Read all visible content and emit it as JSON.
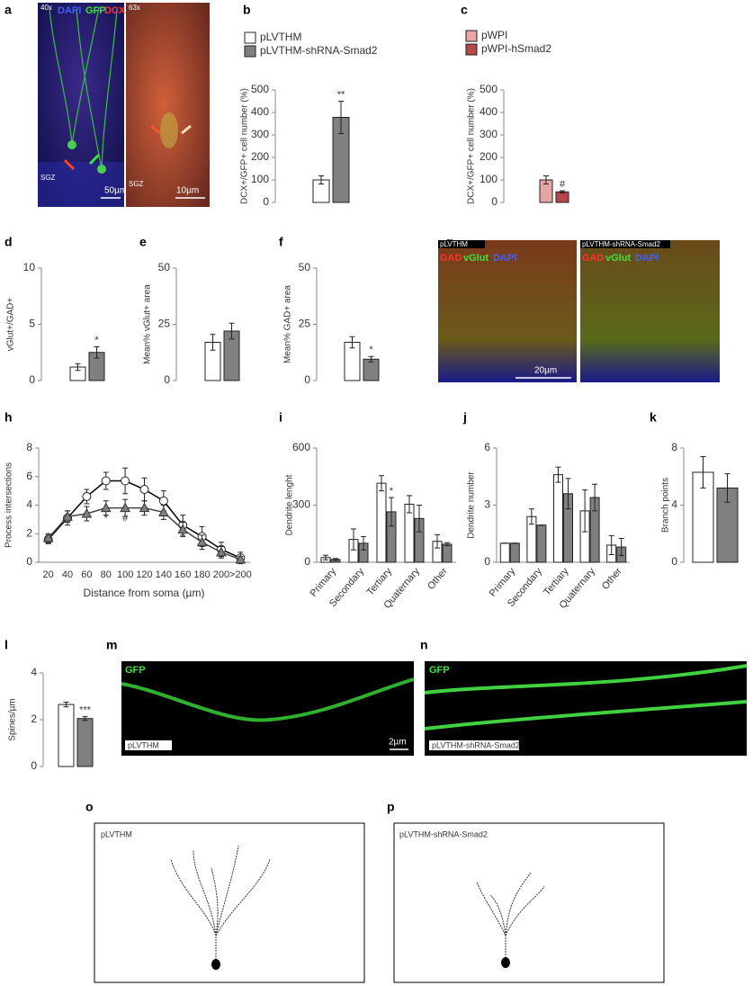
{
  "chart_data": [
    {
      "panel": "b",
      "type": "bar",
      "ylabel": "DCX+/GFP+ cell number (%)",
      "ylim": [
        0,
        500
      ],
      "yticks": [
        0,
        100,
        200,
        300,
        400,
        500
      ],
      "series": [
        {
          "name": "pLVTHM",
          "color": "#ffffff",
          "values": [
            100
          ],
          "errors": [
            18
          ],
          "significance": [
            null
          ]
        },
        {
          "name": "pLVTHM-shRNA-Smad2",
          "color": "#808080",
          "values": [
            378
          ],
          "errors": [
            72
          ],
          "significance": [
            "**"
          ]
        }
      ]
    },
    {
      "panel": "c",
      "type": "bar",
      "ylabel": "DCX+/GFP+ cell number (%)",
      "ylim": [
        0,
        500
      ],
      "yticks": [
        0,
        100,
        200,
        300,
        400,
        500
      ],
      "series": [
        {
          "name": "pWPI",
          "color": "#e6a5a5",
          "values": [
            100
          ],
          "errors": [
            18
          ],
          "significance": [
            null
          ]
        },
        {
          "name": "pWPI-hSmad2",
          "color": "#b5464a",
          "values": [
            47
          ],
          "errors": [
            5
          ],
          "significance": [
            "#"
          ]
        }
      ]
    },
    {
      "panel": "d",
      "type": "bar",
      "ylabel": "vGlut+/GAD+",
      "ylim": [
        0,
        10
      ],
      "yticks": [
        0,
        5,
        10
      ],
      "series": [
        {
          "color": "#ffffff",
          "values": [
            1.2
          ],
          "errors": [
            0.3
          ],
          "significance": [
            null
          ]
        },
        {
          "color": "#808080",
          "values": [
            2.5
          ],
          "errors": [
            0.5
          ],
          "significance": [
            "*"
          ]
        }
      ]
    },
    {
      "panel": "e",
      "type": "bar",
      "ylabel": "Mean% vGlut+ area",
      "ylim": [
        0,
        50
      ],
      "yticks": [
        0,
        25,
        50
      ],
      "series": [
        {
          "color": "#ffffff",
          "values": [
            17
          ],
          "errors": [
            3.5
          ],
          "significance": [
            null
          ]
        },
        {
          "color": "#808080",
          "values": [
            22
          ],
          "errors": [
            3.5
          ],
          "significance": [
            null
          ]
        }
      ]
    },
    {
      "panel": "f",
      "type": "bar",
      "ylabel": "Mean% GAD+ area",
      "ylim": [
        0,
        50
      ],
      "yticks": [
        0,
        25,
        50
      ],
      "series": [
        {
          "color": "#ffffff",
          "values": [
            17
          ],
          "errors": [
            2.5
          ],
          "significance": [
            null
          ]
        },
        {
          "color": "#808080",
          "values": [
            9.5
          ],
          "errors": [
            1.2
          ],
          "significance": [
            "*"
          ]
        }
      ]
    },
    {
      "panel": "h",
      "type": "line",
      "ylabel": "Process intersections",
      "xlabel": "Distance from soma (µm)",
      "ylim": [
        0,
        8
      ],
      "yticks": [
        0,
        2,
        4,
        6,
        8
      ],
      "categories": [
        "20",
        "40",
        "60",
        "80",
        "100",
        "120",
        "140",
        "160",
        "180",
        "200",
        ">200"
      ],
      "series": [
        {
          "color": "#ffffff",
          "marker": "circle",
          "values": [
            1.6,
            3.1,
            4.6,
            5.7,
            5.7,
            5.1,
            4.3,
            2.6,
            1.8,
            0.9,
            0.3
          ],
          "errors": [
            0.3,
            0.5,
            0.5,
            0.6,
            0.9,
            0.8,
            0.7,
            0.7,
            0.7,
            0.5,
            0.4
          ],
          "significance": [
            null,
            null,
            null,
            null,
            null,
            null,
            null,
            null,
            null,
            null,
            null
          ]
        },
        {
          "color": "#808080",
          "marker": "triangle",
          "values": [
            1.7,
            3.2,
            3.4,
            3.8,
            3.8,
            3.8,
            3.5,
            2.3,
            1.4,
            0.7,
            0.2
          ],
          "errors": [
            0.3,
            0.4,
            0.5,
            0.5,
            0.6,
            0.5,
            0.5,
            0.5,
            0.5,
            0.4,
            0.2
          ],
          "significance": [
            null,
            null,
            null,
            "*",
            "#",
            null,
            null,
            null,
            null,
            null,
            null
          ]
        }
      ]
    },
    {
      "panel": "i",
      "type": "bar",
      "ylabel": "Dendrite lenght",
      "ylim": [
        0,
        600
      ],
      "yticks": [
        0,
        300,
        600
      ],
      "categories": [
        "Primary",
        "Secondary",
        "Tertiary",
        "Quaternary",
        "Other"
      ],
      "series": [
        {
          "color": "#ffffff",
          "values": [
            25,
            120,
            415,
            305,
            110
          ],
          "errors": [
            12,
            55,
            40,
            45,
            35
          ],
          "significance": [
            null,
            null,
            null,
            null,
            null
          ]
        },
        {
          "color": "#808080",
          "values": [
            15,
            100,
            265,
            230,
            95
          ],
          "errors": [
            5,
            35,
            75,
            70,
            8
          ],
          "significance": [
            null,
            null,
            "*",
            null,
            null
          ]
        }
      ]
    },
    {
      "panel": "j",
      "type": "bar",
      "ylabel": "Dendrite number",
      "ylim": [
        0,
        6
      ],
      "yticks": [
        0,
        3,
        6
      ],
      "categories": [
        "Primary",
        "Secondary",
        "Tertiary",
        "Quaternary",
        "Other"
      ],
      "series": [
        {
          "color": "#ffffff",
          "values": [
            1,
            2.4,
            4.6,
            2.7,
            0.9
          ],
          "errors": [
            0,
            0.4,
            0.4,
            1.1,
            0.5
          ],
          "significance": [
            null,
            null,
            null,
            null,
            null
          ]
        },
        {
          "color": "#808080",
          "values": [
            1,
            1.95,
            3.6,
            3.4,
            0.8
          ],
          "errors": [
            0,
            0,
            0.8,
            0.7,
            0.45
          ],
          "significance": [
            null,
            null,
            null,
            null,
            null
          ]
        }
      ]
    },
    {
      "panel": "k",
      "type": "bar",
      "ylabel": "Branch points",
      "ylim": [
        0,
        8
      ],
      "yticks": [
        0,
        4,
        8
      ],
      "series": [
        {
          "color": "#ffffff",
          "values": [
            6.3
          ],
          "errors": [
            1.1
          ],
          "significance": [
            null
          ]
        },
        {
          "color": "#808080",
          "values": [
            5.2
          ],
          "errors": [
            1.0
          ],
          "significance": [
            null
          ]
        }
      ]
    },
    {
      "panel": "l",
      "type": "bar",
      "ylabel": "Spines/µm",
      "ylim": [
        0,
        4
      ],
      "yticks": [
        0,
        2,
        4
      ],
      "series": [
        {
          "color": "#ffffff",
          "values": [
            2.65
          ],
          "errors": [
            0.1
          ],
          "significance": [
            null
          ]
        },
        {
          "color": "#808080",
          "values": [
            2.05
          ],
          "errors": [
            0.08
          ],
          "significance": [
            "***"
          ]
        }
      ]
    }
  ],
  "images": [
    {
      "panel": "a",
      "texts": [
        "40x",
        "DAPI",
        "GFP",
        "DCX",
        "SGZ",
        "50µm",
        "63x",
        "SGZ",
        "10µm"
      ]
    },
    {
      "panel": "g",
      "texts": [
        "pLVTHM",
        "GAD",
        "vGlut",
        "DAPI",
        "pLVTHM-shRNA-Smad2",
        "GAD",
        "vGlut",
        "DAPI",
        "20µm"
      ]
    },
    {
      "panel": "m",
      "texts": [
        "GFP",
        "pLVTHM",
        "2µm"
      ]
    },
    {
      "panel": "n",
      "texts": [
        "GFP",
        "pLVTHM-shRNA-Smad2"
      ]
    },
    {
      "panel": "o",
      "texts": [
        "pLVTHM"
      ]
    },
    {
      "panel": "p",
      "texts": [
        "pLVTHM-shRNA-Smad2"
      ]
    }
  ]
}
